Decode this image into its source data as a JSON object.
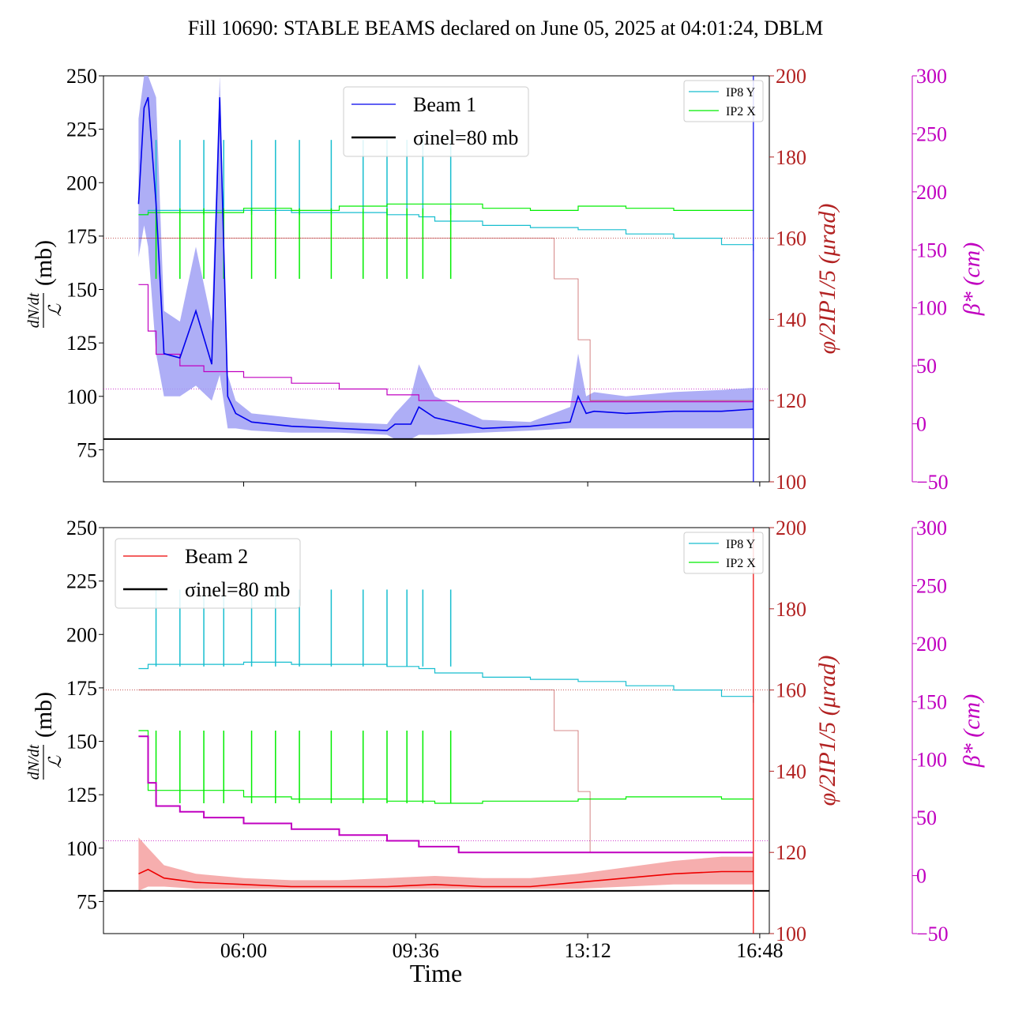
{
  "figure": {
    "title": "Fill 10690: STABLE BEAMS declared on June 05, 2025 at 04:01:24, DBLM",
    "xlabel": "Time"
  },
  "colors": {
    "beam1": "#0000ee",
    "beam1_band": "#a0a0f5",
    "beam2": "#ee0000",
    "beam2_band": "#f5a0a0",
    "ip8y": "#17becf",
    "ip2x": "#00ee00",
    "phi": "#b22222",
    "beta": "#c000c0",
    "sigma": "#000000"
  },
  "chart_data": [
    {
      "type": "line",
      "panel": "top",
      "legend_main": [
        {
          "name": "Beam 1",
          "color": "#0000ee"
        },
        {
          "name": "σinel=80 mb",
          "color": "#000000"
        }
      ],
      "legend_small": [
        {
          "name": "IP8 Y",
          "color": "#17becf"
        },
        {
          "name": "IP2 X",
          "color": "#00ee00"
        }
      ],
      "ylabel_left_num": "dN/dt",
      "ylabel_left_den": "ℒ",
      "ylabel_left_unit": "(mb)",
      "ylabel_right1": "φ/2IP1/5 (μrad)",
      "ylabel_right2": "β* (cm)",
      "ylim_left": [
        60,
        250
      ],
      "ylim_right1": [
        100,
        200
      ],
      "ylim_right2": [
        -50,
        300
      ],
      "yticks_left": [
        "75",
        "100",
        "125",
        "150",
        "175",
        "200",
        "225",
        "250"
      ],
      "yticks_right1": [
        "100",
        "120",
        "140",
        "160",
        "180",
        "200"
      ],
      "yticks_right2": [
        "−50",
        "0",
        "50",
        "100",
        "150",
        "200",
        "250",
        "300"
      ],
      "xticks": [
        "06:00",
        "09:36",
        "13:12",
        "16:48"
      ],
      "sigma_inel": 80,
      "beam": {
        "name": "Beam 1",
        "t": [
          "03:48",
          "03:55",
          "04:00",
          "04:10",
          "04:20",
          "04:40",
          "05:00",
          "05:20",
          "05:30",
          "05:40",
          "05:50",
          "06:10",
          "07:00",
          "08:00",
          "09:00",
          "09:10",
          "09:30",
          "09:40",
          "10:00",
          "11:00",
          "12:00",
          "12:50",
          "13:00",
          "13:10",
          "13:20",
          "14:00",
          "15:00",
          "16:00",
          "16:40"
        ],
        "y": [
          190,
          235,
          240,
          190,
          120,
          118,
          140,
          115,
          240,
          100,
          92,
          88,
          86,
          85,
          84,
          87,
          87,
          95,
          90,
          85,
          86,
          88,
          100,
          92,
          93,
          92,
          93,
          93,
          94
        ],
        "band_low": [
          165,
          180,
          170,
          120,
          100,
          100,
          105,
          98,
          110,
          85,
          85,
          84,
          83,
          83,
          82,
          80,
          80,
          82,
          82,
          83,
          84,
          85,
          85,
          85,
          85,
          85,
          85,
          85,
          85
        ],
        "band_high": [
          230,
          250,
          250,
          240,
          140,
          135,
          170,
          135,
          250,
          110,
          98,
          92,
          90,
          88,
          87,
          92,
          100,
          115,
          100,
          89,
          88,
          95,
          120,
          100,
          102,
          100,
          102,
          103,
          104
        ]
      },
      "ip8_y": {
        "t": [
          "03:48",
          "04:00",
          "06:00",
          "07:00",
          "08:00",
          "09:00",
          "09:40",
          "10:00",
          "11:00",
          "12:00",
          "13:00",
          "14:00",
          "15:00",
          "16:00",
          "16:40"
        ],
        "y": [
          185,
          187,
          187,
          186,
          186,
          185,
          184,
          182,
          180,
          179,
          178,
          176,
          174,
          171,
          168
        ],
        "spike_top": 220,
        "spike_t": [
          "04:10",
          "04:40",
          "05:10",
          "05:35",
          "06:10",
          "06:40",
          "07:10",
          "07:50",
          "08:30",
          "09:00",
          "09:25",
          "09:45",
          "10:20"
        ]
      },
      "ip2_x": {
        "t": [
          "03:48",
          "04:00",
          "06:00",
          "07:00",
          "08:00",
          "09:00",
          "10:00",
          "11:00",
          "12:00",
          "13:00",
          "14:00",
          "15:00",
          "16:00",
          "16:40"
        ],
        "y": [
          185,
          186,
          188,
          187,
          189,
          190,
          190,
          188,
          187,
          189,
          188,
          187,
          187,
          187
        ],
        "spike_bottom": 155,
        "spike_t": [
          "04:10",
          "04:40",
          "05:10",
          "05:35",
          "06:10",
          "06:40",
          "07:10",
          "07:50",
          "08:30",
          "09:00",
          "09:25",
          "09:45",
          "10:20"
        ]
      },
      "phi": {
        "t": [
          "03:48",
          "12:00",
          "12:30",
          "13:00",
          "13:15",
          "16:40"
        ],
        "y": [
          160,
          160,
          150,
          135,
          120,
          120
        ]
      },
      "beta": {
        "t": [
          "03:48",
          "04:00",
          "04:10",
          "04:40",
          "05:10",
          "06:00",
          "07:00",
          "08:00",
          "09:00",
          "09:40",
          "10:30",
          "16:40"
        ],
        "y": [
          120,
          80,
          60,
          50,
          45,
          40,
          35,
          30,
          25,
          20,
          19,
          19
        ]
      },
      "phi_ref": 160,
      "beta_ref": 30
    },
    {
      "type": "line",
      "panel": "bottom",
      "legend_main": [
        {
          "name": "Beam 2",
          "color": "#ee0000"
        },
        {
          "name": "σinel=80 mb",
          "color": "#000000"
        }
      ],
      "legend_small": [
        {
          "name": "IP8 Y",
          "color": "#17becf"
        },
        {
          "name": "IP2 X",
          "color": "#00ee00"
        }
      ],
      "ylabel_left_num": "dN/dt",
      "ylabel_left_den": "ℒ",
      "ylabel_left_unit": "(mb)",
      "ylabel_right1": "φ/2IP1/5 (μrad)",
      "ylabel_right2": "β* (cm)",
      "ylim_left": [
        60,
        250
      ],
      "ylim_right1": [
        100,
        200
      ],
      "ylim_right2": [
        -50,
        300
      ],
      "yticks_left": [
        "75",
        "100",
        "125",
        "150",
        "175",
        "200",
        "225",
        "250"
      ],
      "yticks_right1": [
        "100",
        "120",
        "140",
        "160",
        "180",
        "200"
      ],
      "yticks_right2": [
        "−50",
        "0",
        "50",
        "100",
        "150",
        "200",
        "250",
        "300"
      ],
      "xticks": [
        "06:00",
        "09:36",
        "13:12",
        "16:48"
      ],
      "sigma_inel": 80,
      "beam": {
        "name": "Beam 2",
        "t": [
          "03:48",
          "04:00",
          "04:20",
          "05:00",
          "06:00",
          "07:00",
          "08:00",
          "09:00",
          "10:00",
          "11:00",
          "12:00",
          "13:00",
          "14:00",
          "15:00",
          "16:00",
          "16:40"
        ],
        "y": [
          88,
          90,
          86,
          84,
          83,
          82,
          82,
          82,
          83,
          82,
          82,
          84,
          86,
          88,
          89,
          89
        ],
        "band_low": [
          80,
          82,
          82,
          81,
          81,
          81,
          81,
          81,
          81,
          81,
          81,
          81,
          82,
          83,
          83,
          83
        ],
        "band_high": [
          105,
          100,
          92,
          88,
          86,
          85,
          85,
          86,
          87,
          86,
          86,
          88,
          91,
          94,
          96,
          96
        ]
      },
      "ip8_y": {
        "t": [
          "03:48",
          "04:00",
          "06:00",
          "07:00",
          "08:00",
          "09:00",
          "09:40",
          "10:00",
          "11:00",
          "12:00",
          "13:00",
          "14:00",
          "15:00",
          "16:00",
          "16:40"
        ],
        "y": [
          184,
          186,
          187,
          186,
          186,
          185,
          184,
          182,
          180,
          179,
          178,
          176,
          174,
          171,
          168
        ],
        "spike_top": 221,
        "spike_t": [
          "04:10",
          "04:40",
          "05:10",
          "05:35",
          "06:10",
          "06:40",
          "07:10",
          "07:50",
          "08:30",
          "09:00",
          "09:25",
          "09:45",
          "10:20"
        ]
      },
      "ip2_x": {
        "t": [
          "03:48",
          "04:00",
          "06:00",
          "07:00",
          "08:00",
          "09:00",
          "10:00",
          "11:00",
          "12:00",
          "13:00",
          "14:00",
          "15:00",
          "16:00",
          "16:40"
        ],
        "y": [
          155,
          127,
          124,
          123,
          123,
          122,
          121,
          122,
          122,
          123,
          124,
          124,
          123,
          123
        ],
        "spike_bottom": 121,
        "spike_top": 155,
        "spike_t": [
          "04:10",
          "04:40",
          "05:10",
          "05:35",
          "06:10",
          "06:40",
          "07:10",
          "07:50",
          "08:30",
          "09:00",
          "09:25",
          "09:45",
          "10:20"
        ]
      },
      "phi": {
        "t": [
          "03:48",
          "12:00",
          "12:30",
          "13:00",
          "13:15",
          "16:40"
        ],
        "y": [
          160,
          160,
          150,
          135,
          120,
          120
        ]
      },
      "beta": {
        "t": [
          "03:48",
          "04:00",
          "04:10",
          "04:40",
          "05:10",
          "06:00",
          "07:00",
          "08:00",
          "09:00",
          "09:40",
          "10:30",
          "16:40"
        ],
        "y": [
          120,
          80,
          60,
          55,
          50,
          45,
          40,
          35,
          30,
          25,
          20,
          20
        ]
      },
      "phi_ref": 160,
      "beta_ref": 30
    }
  ]
}
